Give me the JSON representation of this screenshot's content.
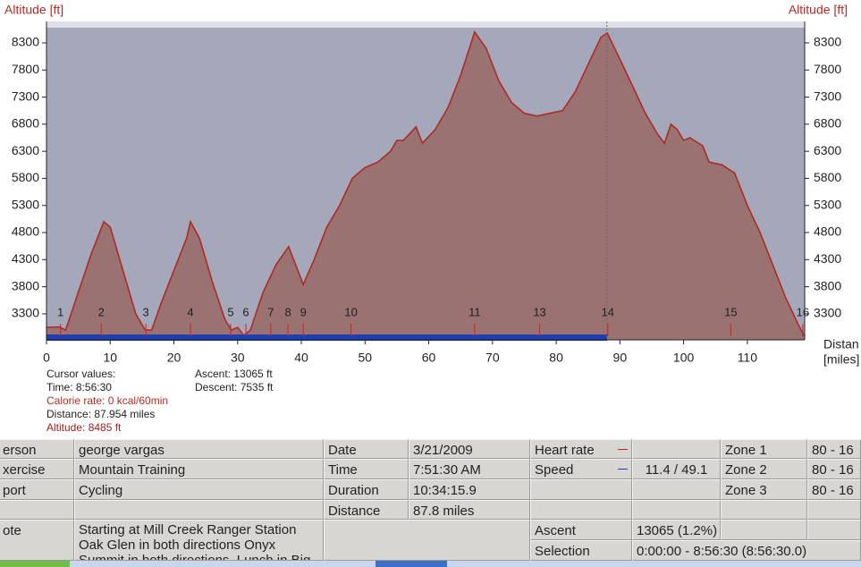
{
  "chart_data": {
    "type": "area",
    "y_label": "Altitude [ft]",
    "y2_label": "Altitude [ft]",
    "x_label": [
      "Distan",
      "[miles]"
    ],
    "color": "#b02a22",
    "fill_color": "#9a7272",
    "background_color": "#a5a8bb",
    "x": [
      0,
      2,
      3,
      5,
      7,
      9,
      10,
      12,
      14,
      15.5,
      16.5,
      18,
      20,
      22,
      22.6,
      24,
      26,
      28,
      29,
      30,
      31,
      32,
      34,
      36,
      38,
      40.3,
      42,
      44,
      46,
      48,
      50,
      52,
      54,
      55,
      56,
      58,
      59,
      61,
      63,
      65,
      67.2,
      69,
      71,
      73,
      75,
      77,
      79,
      81,
      83,
      85,
      87,
      88,
      90,
      92,
      94,
      96,
      97,
      98,
      99,
      100,
      101,
      103,
      104,
      106,
      108,
      110,
      112,
      114,
      116,
      118,
      118.9
    ],
    "values": [
      3050,
      3060,
      3000,
      3700,
      4400,
      5000,
      4900,
      4100,
      3300,
      3000,
      3000,
      3500,
      4100,
      4700,
      5000,
      4700,
      3900,
      3200,
      3000,
      3050,
      2900,
      3000,
      3700,
      4200,
      4540,
      3840,
      4300,
      4900,
      5300,
      5800,
      6000,
      6100,
      6300,
      6500,
      6500,
      6750,
      6450,
      6700,
      7100,
      7700,
      8500,
      8200,
      7600,
      7200,
      7000,
      6950,
      7000,
      7050,
      7400,
      7900,
      8400,
      8485,
      8000,
      7500,
      7000,
      6600,
      6450,
      6800,
      6700,
      6500,
      6550,
      6400,
      6100,
      6050,
      5900,
      5300,
      4800,
      4200,
      3600,
      3100,
      2900
    ],
    "xlim": [
      0,
      119
    ],
    "ylim": [
      2820,
      8580
    ],
    "y2lim": [
      2820,
      8580
    ],
    "xticks": [
      0,
      10,
      20,
      30,
      40,
      50,
      60,
      70,
      80,
      90,
      100,
      110
    ],
    "yticks": [
      3300,
      3800,
      4300,
      4800,
      5300,
      5800,
      6300,
      6800,
      7300,
      7800,
      8300
    ],
    "y2ticks": [
      3300,
      3800,
      4300,
      4800,
      5300,
      5800,
      6300,
      6800,
      7300,
      7800,
      8300
    ],
    "laps": {
      "x": [
        2.2,
        8.6,
        15.6,
        22.6,
        28.9,
        31.3,
        35.2,
        37.9,
        40.3,
        47.8,
        67.2,
        77.4,
        88.1,
        107.4,
        118.7
      ],
      "labels": [
        "1",
        "2",
        "3",
        "4",
        "5",
        "6",
        "7",
        "8",
        "9",
        "10",
        "11",
        "13",
        "14",
        "15",
        "16"
      ]
    },
    "selection": [
      0,
      88
    ],
    "selection_color": "#1c3fb4",
    "cursor_x": 87.954
  },
  "cursor_info": {
    "left": [
      "Cursor values:",
      "Time: 8:56:30",
      "Calorie rate: 0 kcal/60min",
      "Distance: 87.954 miles",
      "Altitude: 8485 ft"
    ],
    "right": [
      "Ascent: 13065 ft",
      "Descent: 7535 ft"
    ]
  },
  "table": {
    "rows": [
      [
        "erson",
        "george vargas",
        "Date",
        "3/21/2009",
        "Heart rate",
        null,
        "Zone 1",
        "80 - 16"
      ],
      [
        "xercise",
        "Mountain Training",
        "Time",
        "7:51:30 AM",
        "Speed",
        "11.4 / 49.1",
        "Zone 2",
        "80 - 16"
      ],
      [
        "port",
        "Cycling",
        "Duration",
        "10:34:15.9",
        null,
        null,
        "Zone 3",
        "80 - 16"
      ],
      [
        null,
        null,
        "Distance",
        "87.8 miles",
        null,
        null,
        null,
        null
      ]
    ],
    "note": [
      "ote",
      "Starting at Mill Creek Ranger Station Oak Glen in both directions Onyx Summit in both directions.  Lunch in Big Bear"
    ],
    "ascent": [
      "Ascent",
      "13065 (1.2%)"
    ],
    "selection": [
      "Selection",
      "0:00:00 - 8:56:30 (8:56:30.0)"
    ]
  }
}
